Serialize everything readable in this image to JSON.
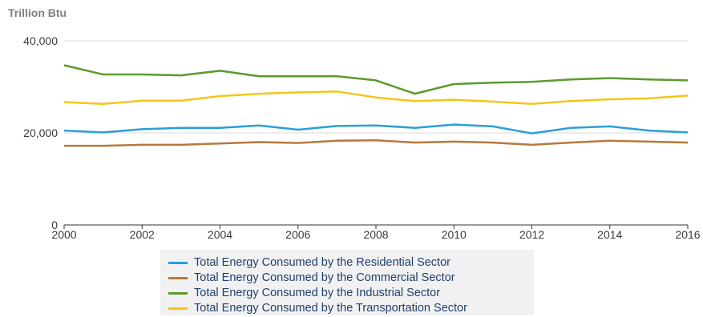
{
  "chart_data": {
    "type": "line",
    "unit_label": "Trillion Btu",
    "x": [
      2000,
      2001,
      2002,
      2003,
      2004,
      2005,
      2006,
      2007,
      2008,
      2009,
      2010,
      2011,
      2012,
      2013,
      2014,
      2015,
      2016
    ],
    "x_ticks": [
      2000,
      2002,
      2004,
      2006,
      2008,
      2010,
      2012,
      2014,
      2016
    ],
    "x_tick_labels": [
      "2000",
      "2002",
      "2004",
      "2006",
      "2008",
      "2010",
      "2012",
      "2014",
      "2016"
    ],
    "y_ticks": [
      0,
      20000,
      40000
    ],
    "y_tick_labels": [
      "0",
      "20,000",
      "40,000"
    ],
    "xlim": [
      2000,
      2016
    ],
    "ylim": [
      0,
      40000
    ],
    "grid": "horizontal",
    "legend_position": "bottom",
    "series": [
      {
        "name": "Total Energy Consumed by the Residential Sector",
        "color": "#2a9fd6",
        "values": [
          20500,
          20100,
          20800,
          21100,
          21100,
          21600,
          20700,
          21500,
          21600,
          21100,
          21800,
          21400,
          19900,
          21100,
          21400,
          20500,
          20100
        ]
      },
      {
        "name": "Total Energy Consumed by the Commercial Sector",
        "color": "#b8783a",
        "values": [
          17200,
          17200,
          17400,
          17400,
          17700,
          18000,
          17800,
          18300,
          18400,
          17900,
          18100,
          17900,
          17400,
          17900,
          18300,
          18100,
          17900
        ]
      },
      {
        "name": "Total Energy Consumed by the Industrial Sector",
        "color": "#5a9b2e",
        "values": [
          34700,
          32700,
          32700,
          32500,
          33500,
          32300,
          32300,
          32300,
          31400,
          28500,
          30600,
          30900,
          31100,
          31600,
          31900,
          31600,
          31400
        ]
      },
      {
        "name": "Total Energy Consumed by the Transportation Sector",
        "color": "#f5c518",
        "values": [
          26700,
          26300,
          27000,
          27000,
          28000,
          28500,
          28800,
          29000,
          27700,
          26900,
          27200,
          26800,
          26300,
          26900,
          27300,
          27500,
          28100
        ]
      }
    ]
  }
}
